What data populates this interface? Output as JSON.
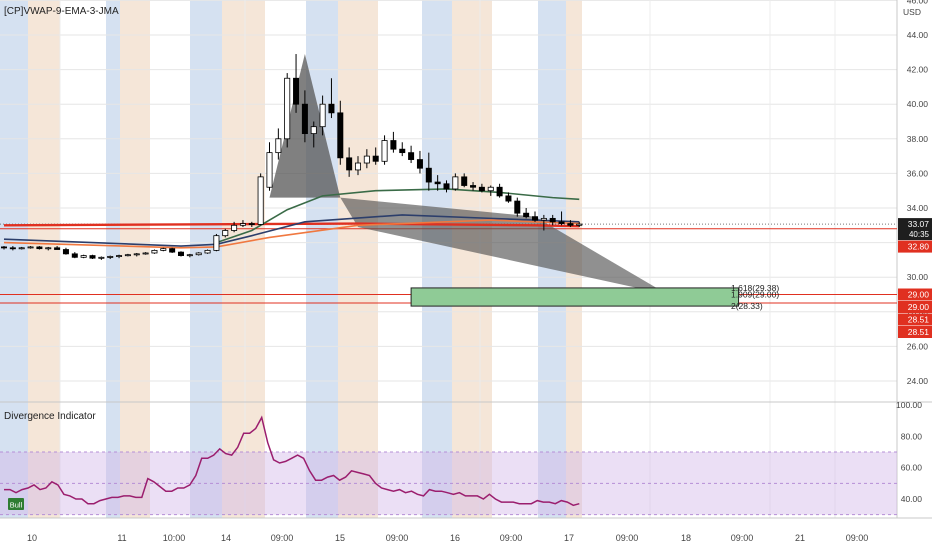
{
  "header": {
    "symbol_label": "[CP]VWAP-9-EMA-3-JMA"
  },
  "colors": {
    "up": "#ffffff",
    "down": "#000000",
    "wick": "#000000",
    "band_blue": "#b3c8e6",
    "band_orange": "#ecd2b8",
    "red_line": "#e03020",
    "orange_line": "#f07840",
    "green_line": "#3a6b47",
    "navy_line": "#2c3e6b",
    "harmonic_fill": "#555555",
    "target_zone": "#8fcb96",
    "divergence_line": "#9b1e6e",
    "osc_band": "#d2b8e8"
  },
  "price_axis": {
    "currency": "USD",
    "ticks": [
      "46.00",
      "44.00",
      "42.00",
      "40.00",
      "38.00",
      "36.00",
      "34.00",
      "30.00",
      "28.00",
      "26.00",
      "24.00"
    ],
    "badges": [
      {
        "text": "33.07",
        "sub": "40:35",
        "value": 33.07,
        "color": "#1e1e1e"
      },
      {
        "text": "32.80",
        "value": 32.8,
        "color": "#e03020"
      },
      {
        "text": "29.00",
        "value": 29.0,
        "color": "#e03020"
      },
      {
        "text": "29.00",
        "value": 29.0,
        "color": "#e03020"
      },
      {
        "text": "28.51",
        "value": 28.51,
        "color": "#e03020"
      },
      {
        "text": "28.51",
        "value": 28.51,
        "color": "#e03020"
      }
    ]
  },
  "fib_labels": [
    {
      "text": "1.618(29.38)",
      "value": 29.38
    },
    {
      "text": "1.909(29.00)",
      "value": 29.0
    },
    {
      "text": "2(28.33)",
      "value": 28.33
    }
  ],
  "osc_panel": {
    "title": "Divergence Indicator",
    "ticks": [
      "100.00",
      "80.00",
      "60.00",
      "40.00"
    ],
    "badge": "Bull"
  },
  "time_axis": {
    "labels": [
      "10",
      "11",
      "10:00",
      "14",
      "09:00",
      "15",
      "09:00",
      "16",
      "09:00",
      "17",
      "09:00",
      "18",
      "09:00",
      "21",
      "09:00"
    ]
  },
  "chart_data": {
    "type": "candlestick",
    "price_range": [
      22.5,
      46.0
    ],
    "osc_range": [
      28,
      102
    ],
    "osc_band": [
      30,
      70
    ],
    "horizontal_lines": [
      32.8,
      29.0,
      28.51
    ],
    "candles": [
      [
        31.75,
        31.8,
        31.6,
        31.7
      ],
      [
        31.7,
        31.8,
        31.55,
        31.65
      ],
      [
        31.65,
        31.75,
        31.6,
        31.7
      ],
      [
        31.7,
        31.8,
        31.65,
        31.75
      ],
      [
        31.75,
        31.8,
        31.6,
        31.65
      ],
      [
        31.65,
        31.75,
        31.55,
        31.7
      ],
      [
        31.7,
        31.8,
        31.6,
        31.6
      ],
      [
        31.6,
        31.7,
        31.3,
        31.35
      ],
      [
        31.35,
        31.45,
        31.1,
        31.15
      ],
      [
        31.15,
        31.3,
        31.1,
        31.25
      ],
      [
        31.25,
        31.3,
        31.05,
        31.1
      ],
      [
        31.1,
        31.2,
        31.0,
        31.15
      ],
      [
        31.15,
        31.25,
        31.05,
        31.2
      ],
      [
        31.2,
        31.3,
        31.1,
        31.25
      ],
      [
        31.25,
        31.35,
        31.2,
        31.3
      ],
      [
        31.3,
        31.4,
        31.2,
        31.35
      ],
      [
        31.35,
        31.45,
        31.3,
        31.4
      ],
      [
        31.4,
        31.6,
        31.35,
        31.55
      ],
      [
        31.55,
        31.7,
        31.5,
        31.65
      ],
      [
        31.65,
        31.7,
        31.4,
        31.45
      ],
      [
        31.45,
        31.5,
        31.2,
        31.25
      ],
      [
        31.25,
        31.35,
        31.15,
        31.3
      ],
      [
        31.3,
        31.45,
        31.25,
        31.4
      ],
      [
        31.4,
        31.6,
        31.35,
        31.55
      ],
      [
        31.55,
        32.5,
        31.5,
        32.4
      ],
      [
        32.4,
        32.8,
        32.3,
        32.7
      ],
      [
        32.7,
        33.2,
        32.6,
        33.0
      ],
      [
        33.0,
        33.3,
        32.9,
        33.1
      ],
      [
        33.1,
        33.2,
        32.9,
        33.05
      ],
      [
        33.05,
        36.0,
        33.0,
        35.8
      ],
      [
        35.2,
        37.8,
        35.0,
        37.2
      ],
      [
        37.2,
        38.6,
        36.8,
        38.0
      ],
      [
        38.0,
        41.8,
        37.5,
        41.5
      ],
      [
        41.5,
        42.9,
        39.5,
        40.0
      ],
      [
        40.0,
        40.8,
        37.8,
        38.3
      ],
      [
        38.3,
        39.0,
        37.5,
        38.7
      ],
      [
        38.7,
        40.5,
        38.2,
        40.0
      ],
      [
        40.0,
        41.5,
        39.2,
        39.5
      ],
      [
        39.5,
        40.2,
        36.5,
        36.9
      ],
      [
        36.9,
        37.5,
        35.8,
        36.2
      ],
      [
        36.2,
        37.0,
        35.9,
        36.6
      ],
      [
        36.6,
        37.4,
        36.3,
        37.0
      ],
      [
        37.0,
        37.5,
        36.5,
        36.7
      ],
      [
        36.7,
        38.2,
        36.5,
        37.9
      ],
      [
        37.9,
        38.4,
        37.2,
        37.4
      ],
      [
        37.4,
        37.8,
        37.0,
        37.2
      ],
      [
        37.2,
        37.6,
        36.6,
        36.8
      ],
      [
        36.8,
        37.3,
        36.0,
        36.3
      ],
      [
        36.3,
        37.2,
        35.0,
        35.5
      ],
      [
        35.5,
        35.9,
        35.0,
        35.4
      ],
      [
        35.4,
        35.6,
        34.9,
        35.1
      ],
      [
        35.1,
        36.0,
        35.0,
        35.8
      ],
      [
        35.8,
        36.0,
        35.2,
        35.3
      ],
      [
        35.3,
        35.5,
        35.0,
        35.2
      ],
      [
        35.2,
        35.4,
        34.9,
        35.0
      ],
      [
        35.0,
        35.3,
        34.7,
        35.2
      ],
      [
        35.2,
        35.4,
        34.6,
        34.7
      ],
      [
        34.7,
        34.9,
        34.3,
        34.4
      ],
      [
        34.4,
        34.6,
        33.5,
        33.7
      ],
      [
        33.7,
        34.0,
        33.4,
        33.5
      ],
      [
        33.5,
        33.8,
        33.2,
        33.3
      ],
      [
        33.3,
        33.6,
        32.7,
        33.4
      ],
      [
        33.4,
        33.6,
        33.0,
        33.2
      ],
      [
        33.2,
        33.8,
        33.0,
        33.1
      ],
      [
        33.1,
        33.3,
        32.9,
        33.0
      ],
      [
        33.0,
        33.2,
        32.9,
        33.07
      ]
    ],
    "series": [
      {
        "name": "VWAP",
        "color": "#e03020",
        "values": [
          [
            0,
            33.0
          ],
          [
            20,
            33.05
          ],
          [
            40,
            33.1
          ],
          [
            60,
            33.0
          ],
          [
            65,
            32.95
          ]
        ]
      },
      {
        "name": "EMA 9",
        "color": "#2c3e6b",
        "values": [
          [
            0,
            32.2
          ],
          [
            20,
            31.8
          ],
          [
            24,
            31.9
          ],
          [
            28,
            32.4
          ],
          [
            34,
            33.2
          ],
          [
            45,
            33.6
          ],
          [
            55,
            33.4
          ],
          [
            65,
            33.2
          ]
        ]
      },
      {
        "name": "JMA",
        "color": "#f07840",
        "values": [
          [
            0,
            32.0
          ],
          [
            20,
            31.7
          ],
          [
            24,
            31.75
          ],
          [
            30,
            32.3
          ],
          [
            40,
            33.0
          ],
          [
            55,
            33.3
          ],
          [
            65,
            33.1
          ]
        ]
      },
      {
        "name": "",
        "color": "#3a6b47",
        "values": [
          [
            24,
            32.0
          ],
          [
            28,
            32.7
          ],
          [
            32,
            33.9
          ],
          [
            36,
            34.7
          ],
          [
            42,
            35.0
          ],
          [
            50,
            35.1
          ],
          [
            56,
            34.9
          ],
          [
            62,
            34.6
          ],
          [
            65,
            34.5
          ]
        ]
      }
    ],
    "harmonic": [
      [
        30,
        34.6
      ],
      [
        34,
        42.9
      ],
      [
        38,
        34.6
      ],
      [
        60,
        33.5
      ],
      [
        75,
        29.0
      ],
      [
        40,
        32.9
      ]
    ],
    "target_zone": {
      "x0": 46,
      "x1": 83,
      "y0": 28.33,
      "y1": 29.38
    },
    "divergence": [
      46,
      46,
      44,
      46,
      47,
      49,
      46,
      47,
      51,
      49,
      43,
      42,
      40,
      40,
      37,
      37,
      39,
      40,
      41,
      41,
      42,
      42,
      41,
      41,
      53,
      51,
      48,
      45,
      45,
      47,
      47,
      49,
      55,
      66,
      66,
      68,
      72,
      69,
      68,
      73,
      82,
      82,
      85,
      92,
      76,
      65,
      63,
      64,
      66,
      68,
      66,
      58,
      52,
      52,
      54,
      55,
      52,
      54,
      58,
      57,
      56,
      55,
      50,
      47,
      46,
      45,
      46,
      44,
      45,
      43,
      42,
      46,
      45,
      45,
      44,
      43,
      44,
      42,
      42,
      42,
      40,
      43,
      40,
      38,
      38,
      38,
      37,
      37,
      37,
      39,
      38,
      38,
      37,
      39,
      38,
      36,
      37
    ]
  }
}
